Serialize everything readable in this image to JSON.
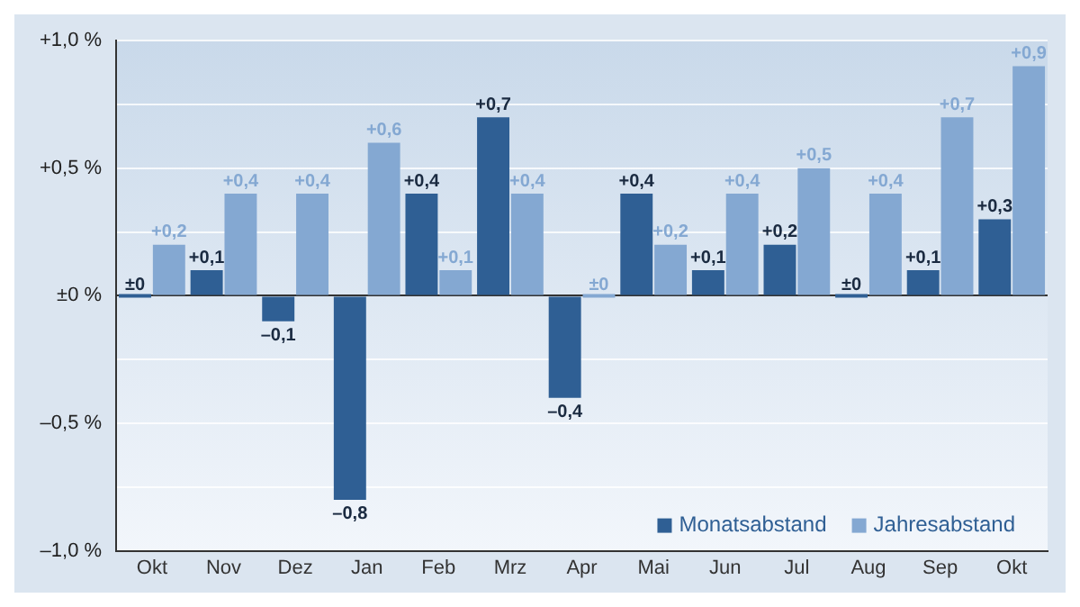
{
  "chart_data": {
    "type": "bar",
    "categories": [
      "Okt",
      "Nov",
      "Dez",
      "Jan",
      "Feb",
      "Mrz",
      "Apr",
      "Mai",
      "Jun",
      "Jul",
      "Aug",
      "Sep",
      "Okt"
    ],
    "series": [
      {
        "name": "Monatsabstand",
        "color": "#2f5f94",
        "values": [
          0,
          0.1,
          -0.1,
          -0.8,
          0.4,
          0.7,
          -0.4,
          0.4,
          0.1,
          0.2,
          0,
          0.1,
          0.3
        ],
        "value_labels": [
          "±0",
          "+0,1",
          "–0,1",
          "–0,8",
          "+0,4",
          "+0,7",
          "–0,4",
          "+0,4",
          "+0,1",
          "+0,2",
          "±0",
          "+0,1",
          "+0,3"
        ]
      },
      {
        "name": "Jahresabstand",
        "color": "#84a8d2",
        "values": [
          0.2,
          0.4,
          0.4,
          0.6,
          0.1,
          0.4,
          0,
          0.2,
          0.4,
          0.5,
          0.4,
          0.7,
          0.9
        ],
        "value_labels": [
          "+0,2",
          "+0,4",
          "+0,4",
          "+0,6",
          "+0,1",
          "+0,4",
          "±0",
          "+0,2",
          "+0,4",
          "+0,5",
          "+0,4",
          "+0,7",
          "+0,9"
        ]
      }
    ],
    "ylim": [
      -1,
      1
    ],
    "yticks": [
      {
        "value": -1,
        "label": "–1,0 %"
      },
      {
        "value": -0.75,
        "label": null
      },
      {
        "value": -0.5,
        "label": "–0,5 %"
      },
      {
        "value": -0.25,
        "label": null
      },
      {
        "value": 0,
        "label": "±0 %"
      },
      {
        "value": 0.25,
        "label": null
      },
      {
        "value": 0.5,
        "label": "+0,5 %"
      },
      {
        "value": 0.75,
        "label": null
      },
      {
        "value": 1,
        "label": "+1,0 %"
      }
    ],
    "grid": "y",
    "legend": "bottom right"
  }
}
